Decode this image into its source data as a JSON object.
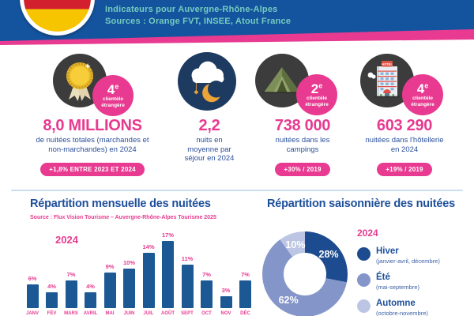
{
  "header": {
    "line1": "Indicateurs pour Auvergne-Rhône-Alpes",
    "line2": "Sources : Orange FVT, INSEE, Atout France"
  },
  "stats": [
    {
      "icon": "medal-icon",
      "badge": {
        "rank": "4",
        "sup": "e",
        "line1": "clientèle",
        "line2": "étrangère"
      },
      "value": "8,0 MILLIONS",
      "description": "de nuitées totales (marchandes et non-marchandes) en 2024",
      "pill": "+1,8% ENTRE 2023 ET 2024"
    },
    {
      "icon": "night-icon",
      "value": "2,2",
      "description": "nuits en moyenne par séjour en 2024"
    },
    {
      "icon": "tent-icon",
      "badge": {
        "rank": "2",
        "sup": "e",
        "line1": "clientèle",
        "line2": "étrangère"
      },
      "value": "738 000",
      "description": "nuitées dans les campings",
      "pill": "+30% / 2019"
    },
    {
      "icon": "hotel-icon",
      "badge": {
        "rank": "4",
        "sup": "e",
        "line1": "clientèle",
        "line2": "étrangère"
      },
      "value": "603 290",
      "description": "nuitées dans l'hôtellerie en 2024",
      "pill": "+19% / 2019"
    }
  ],
  "monthly_section": {
    "title": "Répartition mensuelle des nuitées",
    "source": "Source : Flux Vision Tourisme – Auvergne-Rhône-Alpes Tourisme 2025",
    "year_label": "2024"
  },
  "seasonal_section": {
    "title": "Répartition saisonnière des nuitées",
    "year_label": "2024"
  },
  "chart_data": [
    {
      "type": "bar",
      "title": "Répartition mensuelle des nuitées",
      "year": "2024",
      "categories": [
        "JANV",
        "FÉV",
        "MARS",
        "AVRIL",
        "MAI",
        "JUIN",
        "JUIL",
        "AOÛT",
        "SEPT",
        "OCT",
        "NOV",
        "DÉC"
      ],
      "values": [
        6,
        4,
        7,
        4,
        9,
        10,
        14,
        17,
        11,
        7,
        3,
        7
      ],
      "unit": "%",
      "ylim": [
        0,
        17
      ],
      "bar_color": "#1b5894",
      "label_color": "#e73a90",
      "grid": false,
      "source": "Source : Flux Vision Tourisme – Auvergne-Rhône-Alpes Tourisme 2025"
    },
    {
      "type": "pie",
      "donut": true,
      "title": "Répartition saisonnière des nuitées",
      "year": "2024",
      "legend_position": "right",
      "slices": [
        {
          "label": "Hiver",
          "sublabel": "(janvier-avril, décembre)",
          "value": 28,
          "color": "#1c4b8f"
        },
        {
          "label": "Été",
          "sublabel": "(mai-septembre)",
          "value": 62,
          "color": "#8495c9"
        },
        {
          "label": "Automne",
          "sublabel": "(octobre-novembre)",
          "value": 10,
          "color": "#bcc5e4"
        }
      ]
    }
  ],
  "colors": {
    "header_bg": "#14549e",
    "header_text": "#74cbbf",
    "accent_pink": "#e73a90",
    "dark_blue": "#1d4f9b",
    "divider": "#cadcf0"
  }
}
